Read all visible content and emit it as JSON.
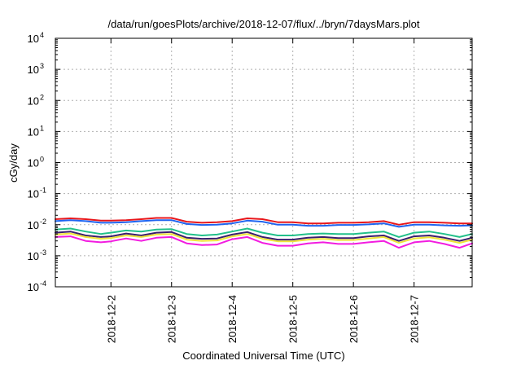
{
  "chart_data": {
    "type": "line",
    "title": "/data/run/goesPlots/archive/2018-12-07/flux/../bryn/7daysMars.plot",
    "xlabel": "Coordinated Universal Time (UTC)",
    "ylabel": "cGy/day",
    "yscale": "log",
    "ylim": [
      0.0001,
      10000
    ],
    "yticks": [
      {
        "base": "10",
        "exp": "-4",
        "value": 0.0001
      },
      {
        "base": "10",
        "exp": "-3",
        "value": 0.001
      },
      {
        "base": "10",
        "exp": "-2",
        "value": 0.01
      },
      {
        "base": "10",
        "exp": "-1",
        "value": 0.1
      },
      {
        "base": "10",
        "exp": "0",
        "value": 1
      },
      {
        "base": "10",
        "exp": "1",
        "value": 10
      },
      {
        "base": "10",
        "exp": "2",
        "value": 100
      },
      {
        "base": "10",
        "exp": "3",
        "value": 1000
      },
      {
        "base": "10",
        "exp": "4",
        "value": 10000
      }
    ],
    "xlim": [
      "2018-12-01T02:00",
      "2018-12-07T23:00"
    ],
    "xticks": [
      {
        "label": "2018-12-2",
        "value": "2018-12-02T00:00"
      },
      {
        "label": "2018-12-3",
        "value": "2018-12-03T00:00"
      },
      {
        "label": "2018-12-4",
        "value": "2018-12-04T00:00"
      },
      {
        "label": "2018-12-5",
        "value": "2018-12-05T00:00"
      },
      {
        "label": "2018-12-6",
        "value": "2018-12-06T00:00"
      },
      {
        "label": "2018-12-7",
        "value": "2018-12-07T00:00"
      }
    ],
    "grid": true,
    "series": [
      {
        "color": "#e8161b",
        "points": [
          [
            "2018-12-01T02:00",
            0.015
          ],
          [
            "2018-12-01T08:00",
            0.016
          ],
          [
            "2018-12-01T14:00",
            0.015
          ],
          [
            "2018-12-01T20:00",
            0.0135
          ],
          [
            "2018-12-02T00:00",
            0.0135
          ],
          [
            "2018-12-02T06:00",
            0.014
          ],
          [
            "2018-12-02T12:00",
            0.015
          ],
          [
            "2018-12-02T18:00",
            0.0165
          ],
          [
            "2018-12-03T00:00",
            0.0165
          ],
          [
            "2018-12-03T06:00",
            0.0125
          ],
          [
            "2018-12-03T12:00",
            0.0115
          ],
          [
            "2018-12-03T18:00",
            0.012
          ],
          [
            "2018-12-04T00:00",
            0.013
          ],
          [
            "2018-12-04T06:00",
            0.016
          ],
          [
            "2018-12-04T12:00",
            0.015
          ],
          [
            "2018-12-04T18:00",
            0.012
          ],
          [
            "2018-12-05T00:00",
            0.012
          ],
          [
            "2018-12-05T06:00",
            0.011
          ],
          [
            "2018-12-05T12:00",
            0.011
          ],
          [
            "2018-12-05T18:00",
            0.0115
          ],
          [
            "2018-12-06T00:00",
            0.0115
          ],
          [
            "2018-12-06T06:00",
            0.012
          ],
          [
            "2018-12-06T12:00",
            0.013
          ],
          [
            "2018-12-06T18:00",
            0.01
          ],
          [
            "2018-12-07T00:00",
            0.012
          ],
          [
            "2018-12-07T06:00",
            0.012
          ],
          [
            "2018-12-07T12:00",
            0.0115
          ],
          [
            "2018-12-07T18:00",
            0.011
          ],
          [
            "2018-12-07T23:00",
            0.011
          ]
        ]
      },
      {
        "color": "#1f64f0",
        "points": [
          [
            "2018-12-01T02:00",
            0.013
          ],
          [
            "2018-12-01T08:00",
            0.014
          ],
          [
            "2018-12-01T14:00",
            0.013
          ],
          [
            "2018-12-01T20:00",
            0.0115
          ],
          [
            "2018-12-02T00:00",
            0.0115
          ],
          [
            "2018-12-02T06:00",
            0.012
          ],
          [
            "2018-12-02T12:00",
            0.013
          ],
          [
            "2018-12-02T18:00",
            0.014
          ],
          [
            "2018-12-03T00:00",
            0.014
          ],
          [
            "2018-12-03T06:00",
            0.0105
          ],
          [
            "2018-12-03T12:00",
            0.0098
          ],
          [
            "2018-12-03T18:00",
            0.01
          ],
          [
            "2018-12-04T00:00",
            0.011
          ],
          [
            "2018-12-04T06:00",
            0.0135
          ],
          [
            "2018-12-04T12:00",
            0.0125
          ],
          [
            "2018-12-04T18:00",
            0.01
          ],
          [
            "2018-12-05T00:00",
            0.01
          ],
          [
            "2018-12-05T06:00",
            0.0092
          ],
          [
            "2018-12-05T12:00",
            0.0092
          ],
          [
            "2018-12-05T18:00",
            0.0098
          ],
          [
            "2018-12-06T00:00",
            0.0098
          ],
          [
            "2018-12-06T06:00",
            0.0102
          ],
          [
            "2018-12-06T12:00",
            0.011
          ],
          [
            "2018-12-06T18:00",
            0.0085
          ],
          [
            "2018-12-07T00:00",
            0.01
          ],
          [
            "2018-12-07T06:00",
            0.01
          ],
          [
            "2018-12-07T12:00",
            0.0095
          ],
          [
            "2018-12-07T18:00",
            0.0092
          ],
          [
            "2018-12-07T23:00",
            0.0095
          ]
        ]
      },
      {
        "color": "#22c08a",
        "points": [
          [
            "2018-12-01T02:00",
            0.007
          ],
          [
            "2018-12-01T08:00",
            0.0075
          ],
          [
            "2018-12-01T14:00",
            0.006
          ],
          [
            "2018-12-01T20:00",
            0.005
          ],
          [
            "2018-12-02T00:00",
            0.0055
          ],
          [
            "2018-12-02T06:00",
            0.0065
          ],
          [
            "2018-12-02T12:00",
            0.006
          ],
          [
            "2018-12-02T18:00",
            0.007
          ],
          [
            "2018-12-03T00:00",
            0.0072
          ],
          [
            "2018-12-03T06:00",
            0.005
          ],
          [
            "2018-12-03T12:00",
            0.0045
          ],
          [
            "2018-12-03T18:00",
            0.0048
          ],
          [
            "2018-12-04T00:00",
            0.006
          ],
          [
            "2018-12-04T06:00",
            0.0075
          ],
          [
            "2018-12-04T12:00",
            0.0055
          ],
          [
            "2018-12-04T18:00",
            0.0045
          ],
          [
            "2018-12-05T00:00",
            0.0045
          ],
          [
            "2018-12-05T06:00",
            0.005
          ],
          [
            "2018-12-05T12:00",
            0.0052
          ],
          [
            "2018-12-05T18:00",
            0.005
          ],
          [
            "2018-12-06T00:00",
            0.005
          ],
          [
            "2018-12-06T06:00",
            0.0055
          ],
          [
            "2018-12-06T12:00",
            0.006
          ],
          [
            "2018-12-06T18:00",
            0.004
          ],
          [
            "2018-12-07T00:00",
            0.0055
          ],
          [
            "2018-12-07T06:00",
            0.006
          ],
          [
            "2018-12-07T12:00",
            0.005
          ],
          [
            "2018-12-07T18:00",
            0.004
          ],
          [
            "2018-12-07T23:00",
            0.005
          ]
        ]
      },
      {
        "color": "#3a1f6e",
        "points": [
          [
            "2018-12-01T02:00",
            0.0055
          ],
          [
            "2018-12-01T08:00",
            0.006
          ],
          [
            "2018-12-01T14:00",
            0.0045
          ],
          [
            "2018-12-01T20:00",
            0.004
          ],
          [
            "2018-12-02T00:00",
            0.0042
          ],
          [
            "2018-12-02T06:00",
            0.0052
          ],
          [
            "2018-12-02T12:00",
            0.0045
          ],
          [
            "2018-12-02T18:00",
            0.0055
          ],
          [
            "2018-12-03T00:00",
            0.0058
          ],
          [
            "2018-12-03T06:00",
            0.0038
          ],
          [
            "2018-12-03T12:00",
            0.0035
          ],
          [
            "2018-12-03T18:00",
            0.0036
          ],
          [
            "2018-12-04T00:00",
            0.0048
          ],
          [
            "2018-12-04T06:00",
            0.0058
          ],
          [
            "2018-12-04T12:00",
            0.004
          ],
          [
            "2018-12-04T18:00",
            0.0033
          ],
          [
            "2018-12-05T00:00",
            0.0033
          ],
          [
            "2018-12-05T06:00",
            0.0038
          ],
          [
            "2018-12-05T12:00",
            0.004
          ],
          [
            "2018-12-05T18:00",
            0.0037
          ],
          [
            "2018-12-06T00:00",
            0.0037
          ],
          [
            "2018-12-06T06:00",
            0.0042
          ],
          [
            "2018-12-06T12:00",
            0.0045
          ],
          [
            "2018-12-06T18:00",
            0.003
          ],
          [
            "2018-12-07T00:00",
            0.0042
          ],
          [
            "2018-12-07T06:00",
            0.0045
          ],
          [
            "2018-12-07T12:00",
            0.0038
          ],
          [
            "2018-12-07T18:00",
            0.003
          ],
          [
            "2018-12-07T23:00",
            0.0038
          ]
        ]
      },
      {
        "color": "#f0e43a",
        "points": [
          [
            "2018-12-01T02:00",
            0.0048
          ],
          [
            "2018-12-01T08:00",
            0.0052
          ],
          [
            "2018-12-01T14:00",
            0.004
          ],
          [
            "2018-12-01T20:00",
            0.0035
          ],
          [
            "2018-12-02T00:00",
            0.0037
          ],
          [
            "2018-12-02T06:00",
            0.0045
          ],
          [
            "2018-12-02T12:00",
            0.004
          ],
          [
            "2018-12-02T18:00",
            0.0048
          ],
          [
            "2018-12-03T00:00",
            0.005
          ],
          [
            "2018-12-03T06:00",
            0.0033
          ],
          [
            "2018-12-03T12:00",
            0.003
          ],
          [
            "2018-12-03T18:00",
            0.0031
          ],
          [
            "2018-12-04T00:00",
            0.0042
          ],
          [
            "2018-12-04T06:00",
            0.005
          ],
          [
            "2018-12-04T12:00",
            0.0035
          ],
          [
            "2018-12-04T18:00",
            0.0029
          ],
          [
            "2018-12-05T00:00",
            0.0029
          ],
          [
            "2018-12-05T06:00",
            0.0033
          ],
          [
            "2018-12-05T12:00",
            0.0035
          ],
          [
            "2018-12-05T18:00",
            0.0032
          ],
          [
            "2018-12-06T00:00",
            0.0032
          ],
          [
            "2018-12-06T06:00",
            0.0036
          ],
          [
            "2018-12-06T12:00",
            0.004
          ],
          [
            "2018-12-06T18:00",
            0.0026
          ],
          [
            "2018-12-07T00:00",
            0.0036
          ],
          [
            "2018-12-07T06:00",
            0.0039
          ],
          [
            "2018-12-07T12:00",
            0.0033
          ],
          [
            "2018-12-07T18:00",
            0.0026
          ],
          [
            "2018-12-07T23:00",
            0.0033
          ]
        ]
      },
      {
        "color": "#f21ce0",
        "points": [
          [
            "2018-12-01T02:00",
            0.004
          ],
          [
            "2018-12-01T08:00",
            0.0042
          ],
          [
            "2018-12-01T14:00",
            0.003
          ],
          [
            "2018-12-01T20:00",
            0.0027
          ],
          [
            "2018-12-02T00:00",
            0.0029
          ],
          [
            "2018-12-02T06:00",
            0.0036
          ],
          [
            "2018-12-02T12:00",
            0.003
          ],
          [
            "2018-12-02T18:00",
            0.0038
          ],
          [
            "2018-12-03T00:00",
            0.004
          ],
          [
            "2018-12-03T06:00",
            0.0025
          ],
          [
            "2018-12-03T12:00",
            0.0022
          ],
          [
            "2018-12-03T18:00",
            0.0023
          ],
          [
            "2018-12-04T00:00",
            0.0034
          ],
          [
            "2018-12-04T06:00",
            0.004
          ],
          [
            "2018-12-04T12:00",
            0.0026
          ],
          [
            "2018-12-04T18:00",
            0.0021
          ],
          [
            "2018-12-05T00:00",
            0.0021
          ],
          [
            "2018-12-05T06:00",
            0.0025
          ],
          [
            "2018-12-05T12:00",
            0.0027
          ],
          [
            "2018-12-05T18:00",
            0.0024
          ],
          [
            "2018-12-06T00:00",
            0.0024
          ],
          [
            "2018-12-06T06:00",
            0.0027
          ],
          [
            "2018-12-06T12:00",
            0.003
          ],
          [
            "2018-12-06T18:00",
            0.0018
          ],
          [
            "2018-12-07T00:00",
            0.0027
          ],
          [
            "2018-12-07T06:00",
            0.003
          ],
          [
            "2018-12-07T12:00",
            0.0024
          ],
          [
            "2018-12-07T18:00",
            0.0018
          ],
          [
            "2018-12-07T23:00",
            0.0025
          ]
        ]
      }
    ]
  }
}
